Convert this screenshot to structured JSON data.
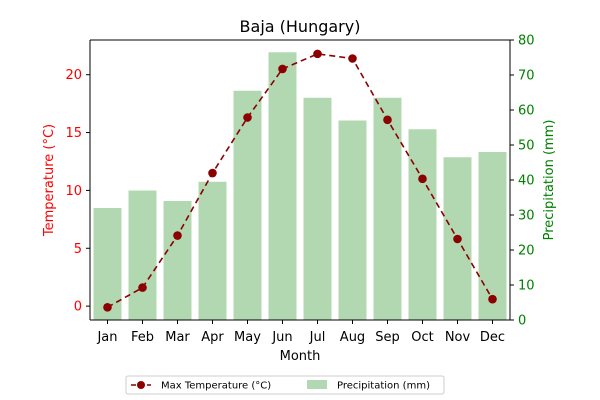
{
  "chart_data": {
    "type": "bar+line",
    "title": "Baja (Hungary)",
    "xlabel": "Month",
    "ylabel_left": "Temperature (°C)",
    "ylabel_right": "Precipitation (mm)",
    "categories": [
      "Jan",
      "Feb",
      "Mar",
      "Apr",
      "May",
      "Jun",
      "Jul",
      "Aug",
      "Sep",
      "Oct",
      "Nov",
      "Dec"
    ],
    "ylim_left": [
      -1.2,
      23
    ],
    "ylim_right": [
      0,
      80
    ],
    "yticks_left": [
      0,
      5,
      10,
      15,
      20
    ],
    "yticks_right": [
      0,
      10,
      20,
      30,
      40,
      50,
      60,
      70,
      80
    ],
    "series": [
      {
        "name": "Max Temperature (°C)",
        "type": "line",
        "axis": "left",
        "values": [
          -0.1,
          1.6,
          6.1,
          11.5,
          16.3,
          20.5,
          21.8,
          21.4,
          16.1,
          11.0,
          5.8,
          0.6
        ],
        "color": "#8b0000",
        "linestyle": "dashed",
        "marker": "circle"
      },
      {
        "name": "Precipitation (mm)",
        "type": "bar",
        "axis": "right",
        "values": [
          32,
          37,
          34,
          39.5,
          65.5,
          76.5,
          63.5,
          57,
          63.5,
          54.5,
          46.5,
          48
        ],
        "color": "#b2d8b2"
      }
    ],
    "left_axis_color": "#ff0000",
    "right_axis_color": "#008000",
    "grid": false,
    "legend_position": "bottom-center"
  }
}
